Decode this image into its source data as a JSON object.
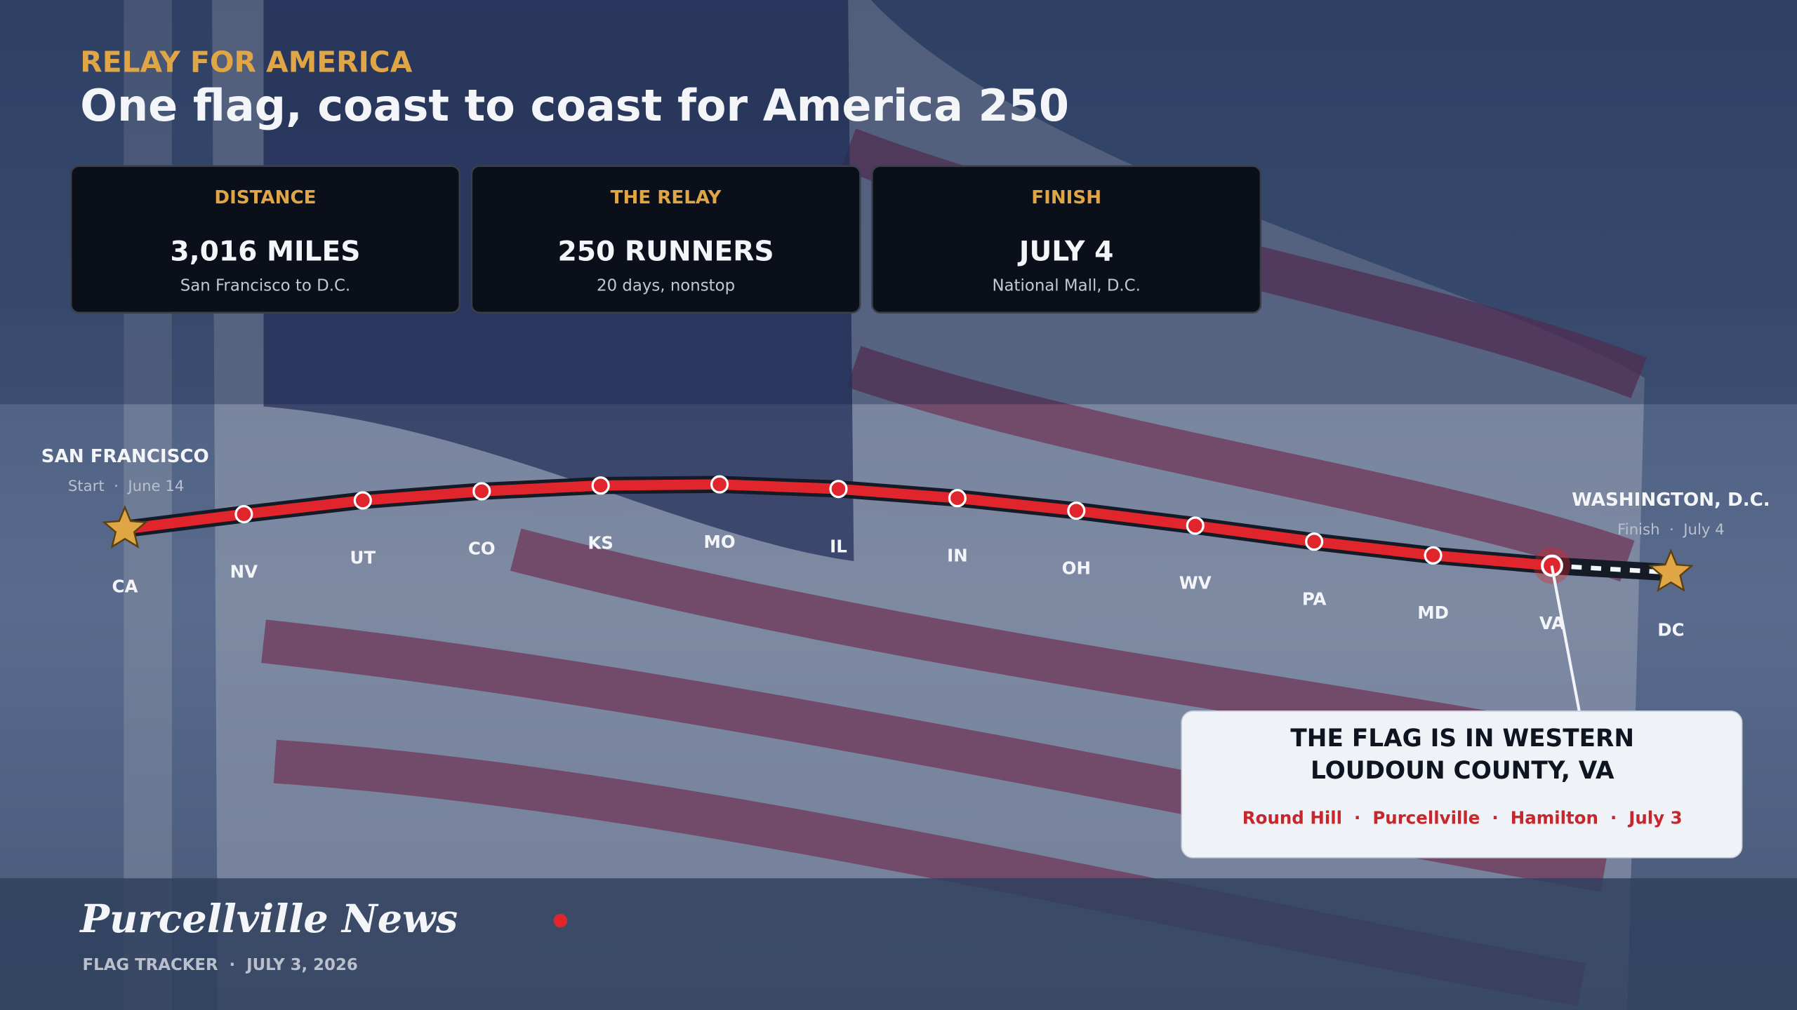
{
  "header": {
    "kicker": "RELAY FOR AMERICA",
    "title": "One flag, coast to coast for America 250"
  },
  "stats": [
    {
      "label": "DISTANCE",
      "value": "3,016 MILES",
      "detail": "San Francisco to D.C."
    },
    {
      "label": "THE RELAY",
      "value": "250 RUNNERS",
      "detail": "20 days, nonstop"
    },
    {
      "label": "FINISH",
      "value": "JULY 4",
      "detail": "National Mall, D.C."
    }
  ],
  "route": {
    "start": {
      "city": "SAN FRANCISCO",
      "note": "Start  ·  June 14"
    },
    "finish": {
      "city": "WASHINGTON, D.C.",
      "note": "Finish  ·  July 4"
    },
    "stops": [
      "CA",
      "NV",
      "UT",
      "CO",
      "KS",
      "MO",
      "IL",
      "IN",
      "OH",
      "WV",
      "PA",
      "MD",
      "VA",
      "DC"
    ]
  },
  "callout": {
    "lines": [
      "THE FLAG IS IN WESTERN",
      "LOUDOUN COUNTY, VA"
    ],
    "detail": "Round Hill  ·  Purcellville  ·  Hamilton  ·  July 3"
  },
  "footer": {
    "brand": "Purcellville News",
    "subtitle": "FLAG TRACKER  ·  JULY 3, 2026"
  }
}
